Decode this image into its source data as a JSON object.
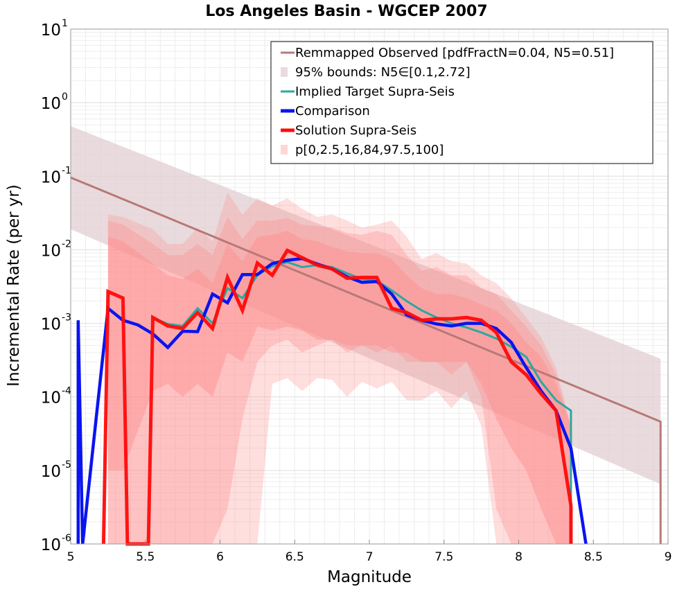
{
  "chart_data": {
    "type": "line",
    "title": "Los Angeles Basin - WGCEP 2007",
    "xlabel": "Magnitude",
    "ylabel": "Incremental Rate (per yr)",
    "xlim": [
      5,
      9
    ],
    "ylim": [
      1e-06,
      10
    ],
    "yscale": "log",
    "grid": true,
    "legend_position": "top-right",
    "x_ticks": [
      {
        "label": "5",
        "value": 5
      },
      {
        "label": "5.5",
        "value": 5.5
      },
      {
        "label": "6",
        "value": 6
      },
      {
        "label": "6.5",
        "value": 6.5
      },
      {
        "label": "7",
        "value": 7
      },
      {
        "label": "7.5",
        "value": 7.5
      },
      {
        "label": "8",
        "value": 8
      },
      {
        "label": "8.5",
        "value": 8.5
      },
      {
        "label": "9",
        "value": 9
      }
    ],
    "y_ticks": [
      {
        "base": "10",
        "exp": "1",
        "value": 10
      },
      {
        "base": "10",
        "exp": "0",
        "value": 1
      },
      {
        "base": "10",
        "exp": "-1",
        "value": 0.1
      },
      {
        "base": "10",
        "exp": "-2",
        "value": 0.01
      },
      {
        "base": "10",
        "exp": "-3",
        "value": 0.001
      },
      {
        "base": "10",
        "exp": "-4",
        "value": 0.0001
      },
      {
        "base": "10",
        "exp": "-5",
        "value": 1e-05
      },
      {
        "base": "10",
        "exp": "-6",
        "value": 1e-06
      }
    ],
    "series": [
      {
        "name": "Remmapped Observed [pdfFractN=0.04, N5=0.51]",
        "kind": "line",
        "color": "#b87878",
        "x": [
          5.0,
          8.95,
          8.95
        ],
        "y": [
          0.096,
          4.6e-05,
          1e-06
        ]
      },
      {
        "name": "95% bounds: N5∈[0.1,2.72]",
        "kind": "band",
        "color": "#e2cfd1",
        "x": [
          5.0,
          8.95
        ],
        "lower": [
          0.019,
          6.5e-06
        ],
        "upper": [
          0.48,
          0.00033
        ]
      },
      {
        "name": "Implied Target Supra-Seis",
        "kind": "line",
        "color": "#2aa8a0",
        "x": [
          5.55,
          5.65,
          5.75,
          5.85,
          5.95,
          6.05,
          6.15,
          6.25,
          6.35,
          6.45,
          6.55,
          6.65,
          6.75,
          6.85,
          6.95,
          7.05,
          7.15,
          7.25,
          7.35,
          7.45,
          7.55,
          7.65,
          7.75,
          7.85,
          7.95,
          8.05,
          8.15,
          8.25,
          8.35,
          8.35
        ],
        "y": [
          0.0012,
          0.00098,
          0.00092,
          0.0016,
          0.001,
          0.003,
          0.0022,
          0.0045,
          0.006,
          0.0068,
          0.0058,
          0.0062,
          0.0058,
          0.0048,
          0.004,
          0.0038,
          0.0028,
          0.002,
          0.0015,
          0.0012,
          0.001,
          0.00088,
          0.00075,
          0.00062,
          0.00048,
          0.00035,
          0.00016,
          9e-05,
          6.5e-05,
          1e-06
        ]
      },
      {
        "name": "Comparison",
        "kind": "line",
        "color": "#0a14f0",
        "x": [
          5.05,
          5.05,
          5.08,
          5.25,
          5.35,
          5.45,
          5.55,
          5.65,
          5.75,
          5.85,
          5.95,
          6.05,
          6.15,
          6.25,
          6.35,
          6.45,
          6.55,
          6.65,
          6.75,
          6.85,
          6.95,
          7.05,
          7.15,
          7.25,
          7.35,
          7.45,
          7.55,
          7.65,
          7.75,
          7.85,
          7.95,
          8.05,
          8.15,
          8.25,
          8.35,
          8.45
        ],
        "y": [
          1e-06,
          0.0011,
          1e-06,
          0.0016,
          0.0011,
          0.00095,
          0.00072,
          0.00047,
          0.00078,
          0.00077,
          0.0025,
          0.0019,
          0.0046,
          0.0046,
          0.0065,
          0.0072,
          0.0076,
          0.0064,
          0.0055,
          0.0043,
          0.0036,
          0.0037,
          0.0025,
          0.0013,
          0.0011,
          0.00098,
          0.00092,
          0.001,
          0.001,
          0.00085,
          0.00055,
          0.00025,
          0.00012,
          6.5e-05,
          2e-05,
          1e-06
        ]
      },
      {
        "name": "Solution Supra-Seis",
        "kind": "line",
        "color": "#ff0a0a",
        "x": [
          5.22,
          5.25,
          5.35,
          5.38,
          5.52,
          5.55,
          5.65,
          5.75,
          5.85,
          5.95,
          6.05,
          6.15,
          6.25,
          6.35,
          6.45,
          6.55,
          6.65,
          6.75,
          6.85,
          6.95,
          7.05,
          7.15,
          7.25,
          7.35,
          7.45,
          7.55,
          7.65,
          7.75,
          7.85,
          7.95,
          8.05,
          8.15,
          8.25,
          8.35,
          8.35
        ],
        "y": [
          1e-06,
          0.0027,
          0.0022,
          1e-06,
          1e-06,
          0.0012,
          0.00092,
          0.00085,
          0.0014,
          0.00085,
          0.0042,
          0.0015,
          0.0066,
          0.0045,
          0.0098,
          0.0078,
          0.0062,
          0.0055,
          0.0041,
          0.0042,
          0.0042,
          0.0016,
          0.0014,
          0.0011,
          0.00115,
          0.00115,
          0.0012,
          0.0011,
          0.00075,
          0.0003,
          0.0002,
          0.00011,
          6.5e-05,
          3.3e-06,
          1e-06
        ]
      },
      {
        "name": "p[0,2.5,16,84,97.5,100]",
        "kind": "percentile-bands",
        "color": "#ff8a8a",
        "x": [
          5.25,
          5.35,
          5.55,
          5.65,
          5.75,
          5.85,
          5.95,
          6.05,
          6.15,
          6.25,
          6.35,
          6.45,
          6.55,
          6.65,
          6.75,
          6.85,
          6.95,
          7.05,
          7.15,
          7.25,
          7.35,
          7.45,
          7.55,
          7.65,
          7.75,
          7.85,
          7.95,
          8.05,
          8.15,
          8.25,
          8.35
        ],
        "p0": [
          1e-06,
          1e-06,
          1e-06,
          1e-06,
          1e-06,
          1e-06,
          1e-06,
          1e-06,
          1e-06,
          1e-06,
          0.00015,
          0.00018,
          0.00012,
          0.00018,
          0.00017,
          0.0001,
          0.00016,
          0.00013,
          0.00016,
          9e-05,
          9e-05,
          0.00012,
          7e-05,
          0.00012,
          4e-05,
          1e-06,
          1e-06,
          1e-06,
          1e-06,
          1e-06,
          1e-06
        ],
        "p2_5": [
          1e-06,
          1e-06,
          1e-06,
          1e-06,
          1e-06,
          1e-06,
          1e-06,
          3e-06,
          5e-05,
          0.0003,
          0.0005,
          0.0006,
          0.0004,
          0.0005,
          0.0006,
          0.0004,
          0.0005,
          0.0004,
          0.0005,
          0.0003,
          0.0003,
          0.0003,
          0.0002,
          0.0003,
          0.0001,
          3e-06,
          1e-06,
          1e-06,
          1e-06,
          1e-06,
          1e-06
        ],
        "p16": [
          1e-05,
          1e-05,
          0.00012,
          0.00015,
          0.0001,
          0.00015,
          0.0001,
          0.0004,
          0.0003,
          0.0009,
          0.0008,
          0.0009,
          0.0008,
          0.0006,
          0.0006,
          0.0005,
          0.0005,
          0.0005,
          0.0004,
          0.0004,
          0.0003,
          0.0003,
          0.0003,
          0.0003,
          0.00015,
          5e-05,
          2e-05,
          1e-05,
          3e-06,
          1e-06,
          1e-06
        ],
        "p84": [
          0.015,
          0.013,
          0.0065,
          0.0045,
          0.004,
          0.0055,
          0.0035,
          0.012,
          0.007,
          0.015,
          0.016,
          0.018,
          0.014,
          0.013,
          0.011,
          0.0095,
          0.009,
          0.009,
          0.0075,
          0.0045,
          0.003,
          0.0025,
          0.0025,
          0.0022,
          0.0018,
          0.0015,
          0.001,
          0.00055,
          0.00035,
          0.00015,
          4e-05
        ],
        "p97_5": [
          0.025,
          0.022,
          0.012,
          0.0085,
          0.0085,
          0.012,
          0.0085,
          0.028,
          0.014,
          0.025,
          0.025,
          0.027,
          0.022,
          0.021,
          0.02,
          0.017,
          0.016,
          0.018,
          0.016,
          0.0085,
          0.0052,
          0.0058,
          0.0045,
          0.0045,
          0.003,
          0.0025,
          0.0015,
          0.0009,
          0.0005,
          0.0002,
          4e-05
        ],
        "p100": [
          0.03,
          0.028,
          0.019,
          0.012,
          0.012,
          0.02,
          0.013,
          0.06,
          0.03,
          0.05,
          0.04,
          0.05,
          0.036,
          0.028,
          0.03,
          0.025,
          0.02,
          0.022,
          0.025,
          0.015,
          0.0075,
          0.009,
          0.007,
          0.0065,
          0.0045,
          0.0035,
          0.0022,
          0.0012,
          0.00065,
          0.00025,
          4e-05
        ]
      }
    ]
  }
}
